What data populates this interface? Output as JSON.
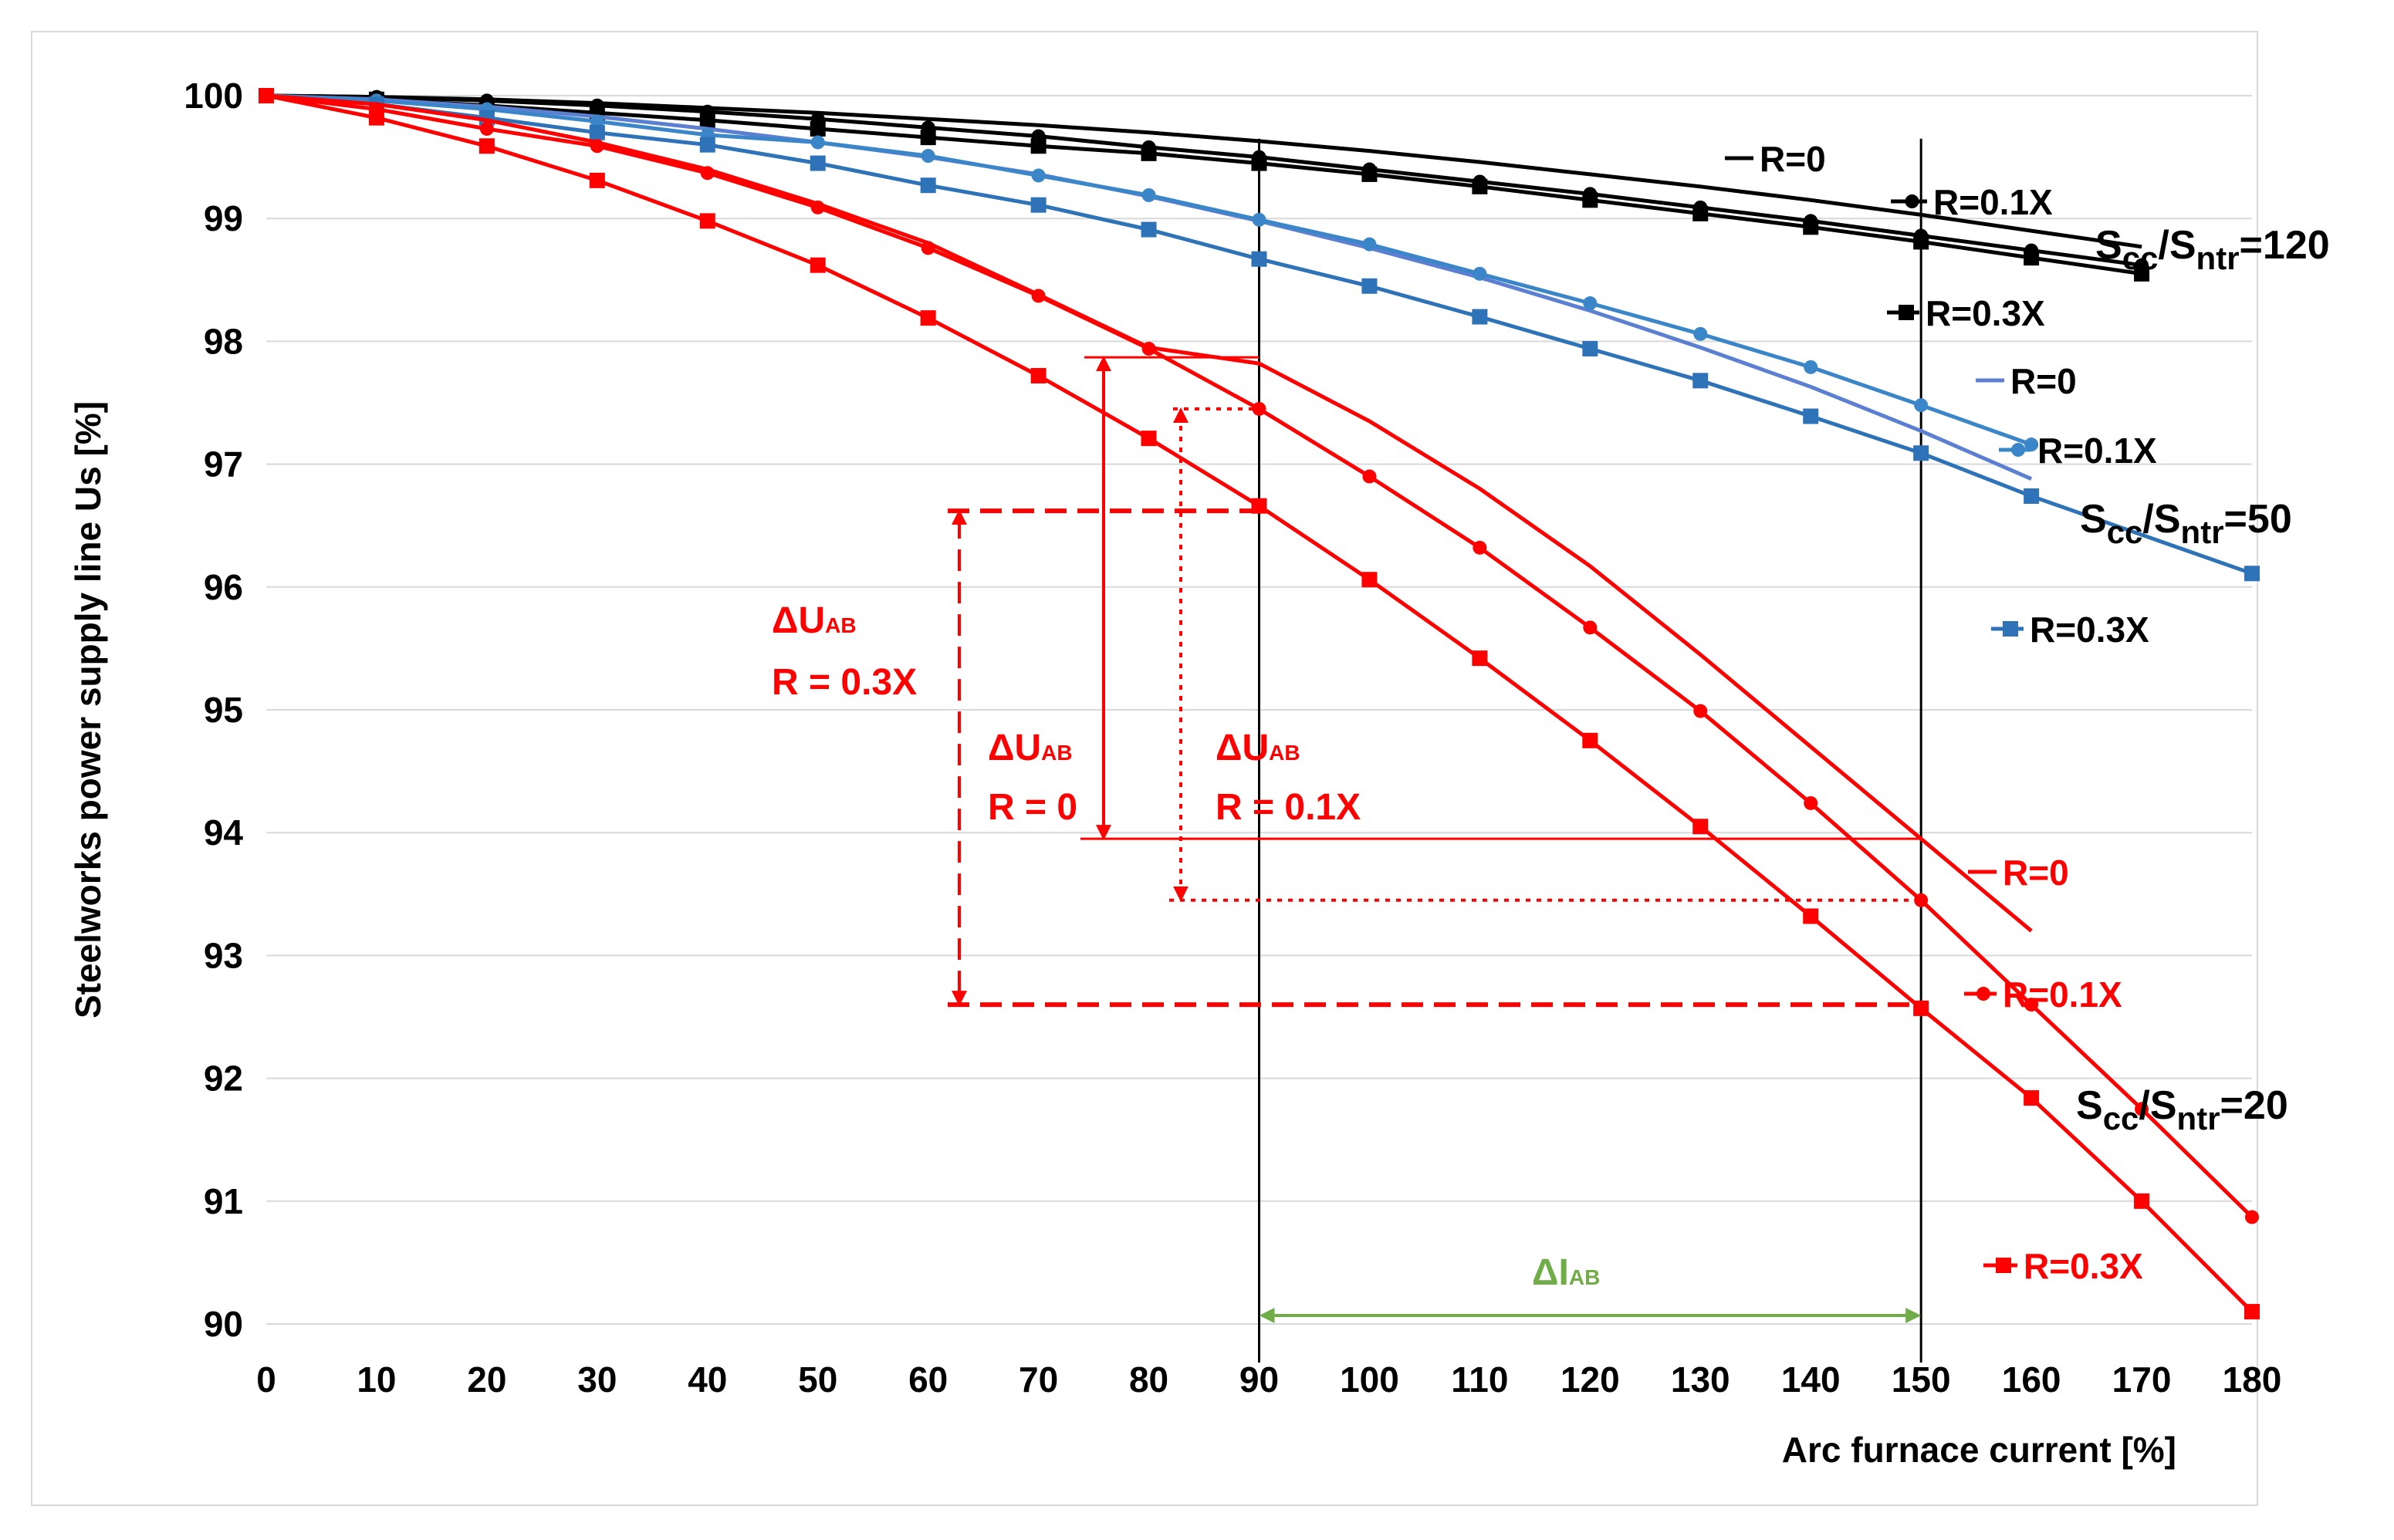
{
  "chart_data": {
    "type": "line",
    "title": "",
    "xlabel": "Arc furnace  current   [%]",
    "ylabel": "Steelworks power supply line    Us  [%]",
    "xlim": [
      0,
      180
    ],
    "ylim": [
      90,
      100
    ],
    "x_ticks": [
      "0",
      "10",
      "20",
      "30",
      "40",
      "50",
      "60",
      "70",
      "80",
      "90",
      "100",
      "110",
      "120",
      "130",
      "140",
      "150",
      "160",
      "170",
      "180"
    ],
    "y_ticks": [
      "90",
      "91",
      "92",
      "93",
      "94",
      "95",
      "96",
      "97",
      "98",
      "99",
      "100"
    ],
    "grid": true,
    "colors": {
      "black": "#000000",
      "blue_light": "#5b7fd1",
      "blue_mid": "#3a86c8",
      "blue_dark": "#2e73b8",
      "red": "#ff0000",
      "green": "#70ad47"
    },
    "groups": [
      {
        "ratio": {
          "base": "S",
          "sub1": "cc",
          "sep": "/S",
          "sub2": "ntr",
          "value": "=120"
        },
        "color": "black"
      },
      {
        "ratio": {
          "base": "S",
          "sub1": "cc",
          "sep": "/S",
          "sub2": "ntr",
          "value": "=50"
        },
        "color": "blue"
      },
      {
        "ratio": {
          "base": "S",
          "sub1": "cc",
          "sep": "/S",
          "sub2": "ntr",
          "value": "=20"
        },
        "color": "red"
      }
    ],
    "series": [
      {
        "id": "s120_r0",
        "name": "R=0",
        "group": "Scc/Sntr=120",
        "color": "#000000",
        "marker": "none",
        "x": [
          0,
          10,
          20,
          30,
          40,
          50,
          60,
          70,
          80,
          90,
          100,
          110,
          120,
          130,
          140,
          150,
          160,
          170
        ],
        "y": [
          100,
          99.99,
          99.97,
          99.94,
          99.9,
          99.86,
          99.81,
          99.76,
          99.7,
          99.63,
          99.55,
          99.46,
          99.36,
          99.26,
          99.15,
          99.03,
          98.9,
          98.77
        ]
      },
      {
        "id": "s120_r01",
        "name": "R=0.1X",
        "group": "Scc/Sntr=120",
        "color": "#000000",
        "marker": "circle",
        "x": [
          0,
          10,
          20,
          30,
          40,
          50,
          60,
          70,
          80,
          90,
          100,
          110,
          120,
          130,
          140,
          150,
          160,
          170
        ],
        "y": [
          100,
          99.99,
          99.96,
          99.92,
          99.87,
          99.81,
          99.74,
          99.67,
          99.58,
          99.5,
          99.4,
          99.3,
          99.2,
          99.09,
          98.98,
          98.86,
          98.74,
          98.62
        ]
      },
      {
        "id": "s120_r03",
        "name": "R=0.3X",
        "group": "Scc/Sntr=120",
        "color": "#000000",
        "marker": "square",
        "x": [
          0,
          10,
          20,
          30,
          40,
          50,
          60,
          70,
          80,
          90,
          100,
          110,
          120,
          130,
          140,
          150,
          160,
          170
        ],
        "y": [
          100,
          99.97,
          99.92,
          99.86,
          99.8,
          99.73,
          99.66,
          99.59,
          99.53,
          99.45,
          99.36,
          99.26,
          99.15,
          99.04,
          98.93,
          98.81,
          98.68,
          98.55
        ]
      },
      {
        "id": "s50_r0",
        "name": "R=0",
        "group": "Scc/Sntr=50",
        "color": "#5b7fd1",
        "marker": "none",
        "x": [
          0,
          10,
          20,
          30,
          40,
          50,
          60,
          70,
          80,
          90,
          100,
          110,
          120,
          130,
          140,
          150,
          160
        ],
        "y": [
          100,
          99.97,
          99.91,
          99.83,
          99.73,
          99.62,
          99.5,
          99.36,
          99.18,
          98.98,
          98.76,
          98.52,
          98.25,
          97.95,
          97.63,
          97.27,
          96.88
        ]
      },
      {
        "id": "s50_r01",
        "name": "R=0.1X",
        "group": "Scc/Sntr=50",
        "color": "#3a86c8",
        "marker": "circle",
        "x": [
          0,
          10,
          20,
          30,
          40,
          50,
          60,
          70,
          80,
          90,
          100,
          110,
          120,
          130,
          140,
          150,
          160
        ],
        "y": [
          100,
          99.96,
          99.89,
          99.79,
          99.68,
          99.62,
          99.51,
          99.35,
          99.19,
          98.99,
          98.79,
          98.55,
          98.31,
          98.06,
          97.79,
          97.48,
          97.16
        ]
      },
      {
        "id": "s50_r03",
        "name": "R=0.3X",
        "group": "Scc/Sntr=50",
        "color": "#2e73b8",
        "marker": "square",
        "x": [
          0,
          10,
          20,
          30,
          40,
          50,
          60,
          70,
          80,
          90,
          100,
          110,
          120,
          130,
          140,
          150,
          160,
          180
        ],
        "y": [
          100,
          99.93,
          99.82,
          99.7,
          99.6,
          99.45,
          99.27,
          99.11,
          98.91,
          98.67,
          98.45,
          98.2,
          97.94,
          97.68,
          97.39,
          97.09,
          96.74,
          96.11
        ]
      },
      {
        "id": "s20_r0",
        "name": "R=0",
        "group": "Scc/Sntr=20",
        "color": "#ff0000",
        "marker": "none",
        "x": [
          0,
          10,
          20,
          30,
          40,
          50,
          60,
          70,
          80,
          90,
          100,
          110,
          120,
          130,
          140,
          150,
          160
        ],
        "y": [
          100,
          99.93,
          99.8,
          99.62,
          99.4,
          99.12,
          98.8,
          98.38,
          97.95,
          97.82,
          97.35,
          96.8,
          96.17,
          95.45,
          94.7,
          93.95,
          93.2
        ]
      },
      {
        "id": "s20_r01",
        "name": "R=0.1X",
        "group": "Scc/Sntr=20",
        "color": "#ff0000",
        "marker": "circle",
        "x": [
          0,
          10,
          20,
          30,
          40,
          50,
          60,
          70,
          80,
          90,
          100,
          110,
          120,
          130,
          140,
          150,
          160,
          170,
          180
        ],
        "y": [
          100,
          99.89,
          99.73,
          99.59,
          99.37,
          99.09,
          98.76,
          98.37,
          97.94,
          97.45,
          96.9,
          96.32,
          95.67,
          94.99,
          94.24,
          93.45,
          92.6,
          91.75,
          90.87
        ]
      },
      {
        "id": "s20_r03",
        "name": "R=0.3X",
        "group": "Scc/Sntr=20",
        "color": "#ff0000",
        "marker": "square",
        "x": [
          0,
          10,
          20,
          30,
          40,
          50,
          60,
          70,
          80,
          90,
          100,
          110,
          120,
          130,
          140,
          150,
          160,
          170,
          180
        ],
        "y": [
          100,
          99.82,
          99.59,
          99.31,
          98.98,
          98.62,
          98.19,
          97.72,
          97.21,
          96.66,
          96.06,
          95.42,
          94.75,
          94.05,
          93.32,
          92.57,
          91.84,
          91.0,
          90.1
        ]
      }
    ],
    "reference_lines": {
      "x": [
        90,
        150
      ],
      "color": "#000000"
    },
    "annotations": [
      {
        "id": "du_r03",
        "label": "ΔU",
        "sub": "AB",
        "line2": "R = 0.3X",
        "from_y": 96.62,
        "to_y": 92.6,
        "style": "dashed"
      },
      {
        "id": "du_r0",
        "label": "ΔU",
        "sub": "AB",
        "line2": "R = 0",
        "from_y": 97.87,
        "to_y": 93.95,
        "style": "solid"
      },
      {
        "id": "du_r01",
        "label": "ΔU",
        "sub": "AB",
        "line2": "R = 0.1X",
        "from_y": 97.45,
        "to_y": 93.45,
        "style": "dotted"
      },
      {
        "id": "di",
        "label": "ΔI",
        "sub": "AB",
        "from_x": 90,
        "to_x": 150,
        "y": 90.15,
        "color": "#70ad47"
      }
    ]
  }
}
